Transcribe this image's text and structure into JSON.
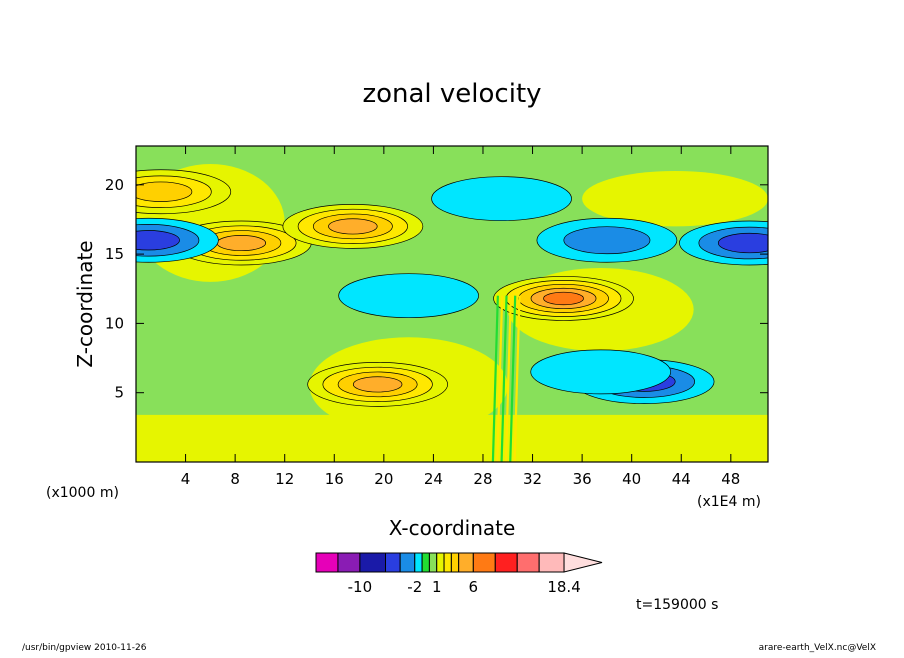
{
  "chart_data": {
    "type": "heatmap",
    "title": "zonal velocity",
    "xlabel": "X-coordinate",
    "ylabel": "Z-coordinate",
    "x_unit": "(x1E4 m)",
    "y_unit": "(x1000 m)",
    "xlim": [
      0,
      51
    ],
    "ylim": [
      0,
      22.8
    ],
    "x_ticks": [
      "4",
      "8",
      "12",
      "16",
      "20",
      "24",
      "28",
      "32",
      "36",
      "40",
      "44",
      "48"
    ],
    "x_tick_values": [
      4,
      8,
      12,
      16,
      20,
      24,
      28,
      32,
      36,
      40,
      44,
      48
    ],
    "y_ticks": [
      "5",
      "10",
      "15",
      "20"
    ],
    "y_tick_values": [
      5,
      10,
      15,
      20
    ],
    "time_label": "t=159000 s",
    "colorbar": {
      "levels": [
        -16,
        -13,
        -10,
        -6,
        -4,
        -2,
        -1,
        0,
        1,
        2,
        3,
        4,
        6,
        9,
        12,
        15,
        18.4
      ],
      "colors": [
        "#e600b8",
        "#8a1cb4",
        "#1a1aa8",
        "#2a3ee0",
        "#1a8ce6",
        "#00e6ff",
        "#22dd33",
        "#88e05a",
        "#e6f500",
        "#ffe800",
        "#ffd000",
        "#ffae2a",
        "#ff7a14",
        "#ff2020",
        "#ff6e6e",
        "#ffbaba",
        "#ffdede"
      ],
      "labels": [
        "-10",
        "-2",
        "1",
        "6",
        "18.4"
      ],
      "label_values": [
        -10,
        -2,
        1,
        6,
        18.4
      ]
    },
    "features": [
      {
        "x": 8.5,
        "z": 15.8,
        "value": 6
      },
      {
        "x": 17.5,
        "z": 17.0,
        "value": 6
      },
      {
        "x": 34.5,
        "z": 11.8,
        "value": 9
      },
      {
        "x": 19.5,
        "z": 5.6,
        "value": 6
      },
      {
        "x": 49.5,
        "z": 15.8,
        "value": -6
      },
      {
        "x": 1.0,
        "z": 16.0,
        "value": -6
      },
      {
        "x": 38.0,
        "z": 16.0,
        "value": -4
      },
      {
        "x": 41.0,
        "z": 5.8,
        "value": -6
      },
      {
        "x": 22.0,
        "z": 12.0,
        "value": -2
      },
      {
        "x": 37.5,
        "z": 6.5,
        "value": -2
      },
      {
        "x": 29.5,
        "z": 19.0,
        "value": -2
      },
      {
        "x": 2.0,
        "z": 19.5,
        "value": 3
      }
    ]
  },
  "footer": {
    "left": "/usr/bin/gpview  2010-11-26",
    "right": "arare-earth_VelX.nc@VelX"
  }
}
